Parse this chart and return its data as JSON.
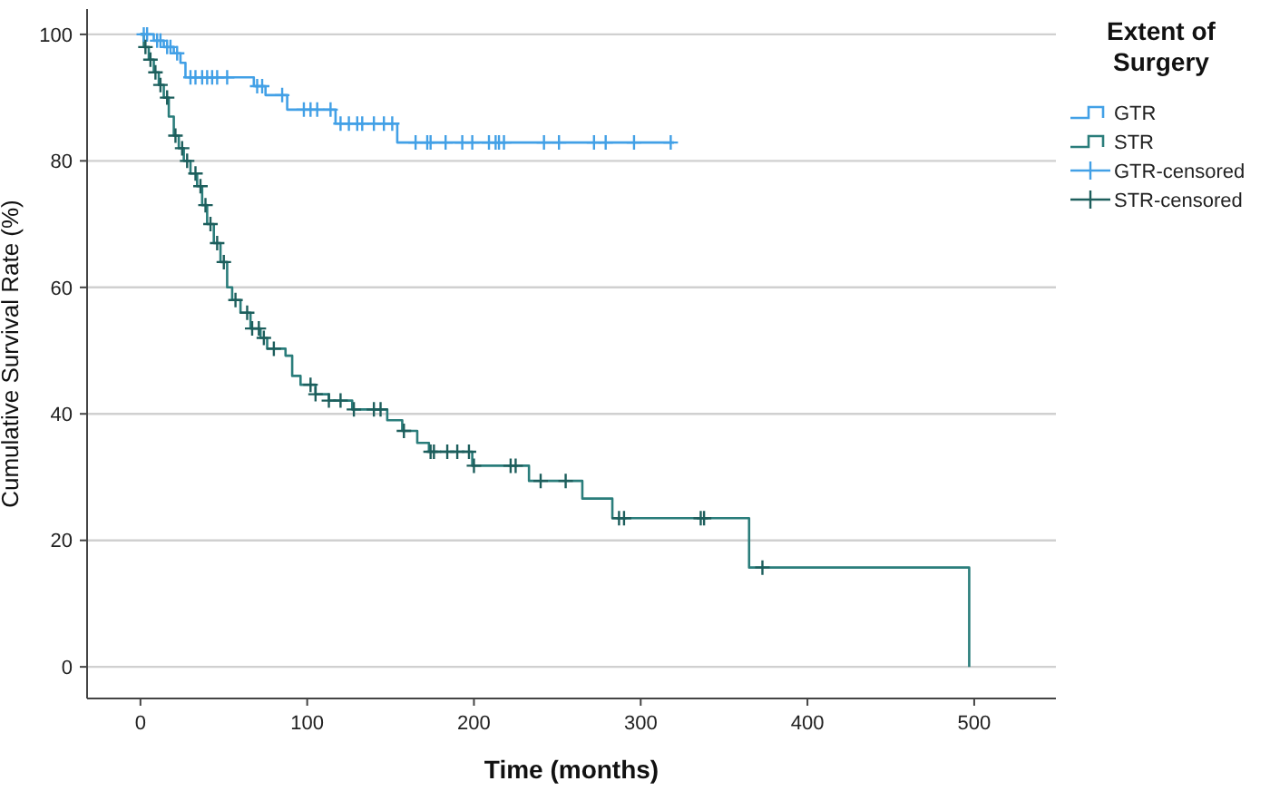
{
  "chart_data": {
    "type": "step",
    "xlabel": "Time (months)",
    "ylabel": "Cumulative Survival Rate (%)",
    "legend_title": "Extent of Surgery",
    "legend": "right",
    "grid": "y",
    "xlim": [
      -32,
      549
    ],
    "ylim": [
      -5,
      104
    ],
    "xticks": [
      0,
      100,
      200,
      300,
      400,
      500
    ],
    "yticks": [
      0,
      20,
      40,
      60,
      80,
      100
    ],
    "series": [
      {
        "name": "GTR",
        "color": "#42a0e6",
        "x": [
          0,
          8,
          14,
          20,
          24,
          27,
          68,
          75,
          88,
          117,
          154,
          320
        ],
        "values": [
          100,
          99,
          98,
          97,
          95.5,
          93.2,
          91.8,
          90.4,
          88.1,
          85.9,
          82.9,
          82.9
        ]
      },
      {
        "name": "STR",
        "color": "#2a7d7b",
        "x": [
          0,
          2,
          5,
          8,
          11,
          14,
          17,
          20,
          23,
          26,
          30,
          34,
          37,
          40,
          44,
          48,
          52,
          55,
          60,
          66,
          72,
          76,
          87,
          91,
          96,
          105,
          113,
          127,
          148,
          157,
          166,
          173,
          199,
          233,
          265,
          283,
          365,
          497
        ],
        "values": [
          100,
          98,
          96,
          94,
          92,
          90,
          87,
          84,
          82,
          80,
          78,
          76,
          73,
          70,
          67,
          64,
          60,
          58,
          56,
          53.5,
          52,
          50.3,
          49.2,
          46,
          44.6,
          43.1,
          42.1,
          40.7,
          39,
          37.3,
          35.4,
          34,
          31.8,
          29.4,
          26.6,
          23.5,
          15.7,
          0
        ]
      },
      {
        "name": "GTR-censored",
        "type": "scatter",
        "marker": "cross",
        "color": "#42a0e6",
        "x": [
          2,
          4,
          10,
          12,
          16,
          18,
          22,
          30,
          33,
          37,
          40,
          43,
          46,
          52,
          70,
          73,
          85,
          98,
          102,
          106,
          114,
          120,
          125,
          130,
          133,
          140,
          146,
          151,
          165,
          172,
          174,
          183,
          193,
          199,
          209,
          213,
          215,
          218,
          242,
          251,
          272,
          279,
          296,
          318
        ],
        "values": [
          100,
          100,
          99,
          99,
          98,
          98,
          97,
          93.2,
          93.2,
          93.2,
          93.2,
          93.2,
          93.2,
          93.2,
          91.8,
          91.8,
          90.4,
          88.1,
          88.1,
          88.1,
          88.1,
          85.9,
          85.9,
          85.9,
          85.9,
          85.9,
          85.9,
          85.9,
          82.9,
          82.9,
          82.9,
          82.9,
          82.9,
          82.9,
          82.9,
          82.9,
          82.9,
          82.9,
          82.9,
          82.9,
          82.9,
          82.9,
          82.9,
          82.9
        ]
      },
      {
        "name": "STR-censored",
        "type": "scatter",
        "marker": "cross",
        "color": "#1d5e5c",
        "x": [
          3,
          6,
          9,
          12,
          16,
          21,
          25,
          28,
          33,
          36,
          39,
          42,
          46,
          50,
          57,
          64,
          67,
          71,
          74,
          80,
          102,
          105,
          113,
          120,
          128,
          140,
          144,
          158,
          174,
          176,
          184,
          190,
          197,
          200,
          222,
          225,
          240,
          255,
          287,
          290,
          336,
          338,
          373
        ],
        "values": [
          98,
          96,
          94,
          92,
          90,
          84,
          82,
          80,
          78,
          76,
          73,
          70,
          67,
          64,
          58,
          56,
          53.5,
          53.5,
          52,
          50.3,
          44.6,
          43.1,
          42.1,
          42.1,
          40.7,
          40.7,
          40.7,
          37.3,
          34,
          34,
          34,
          34,
          34,
          31.8,
          31.8,
          31.8,
          29.4,
          29.4,
          23.5,
          23.5,
          23.5,
          23.5,
          15.7
        ]
      }
    ]
  }
}
